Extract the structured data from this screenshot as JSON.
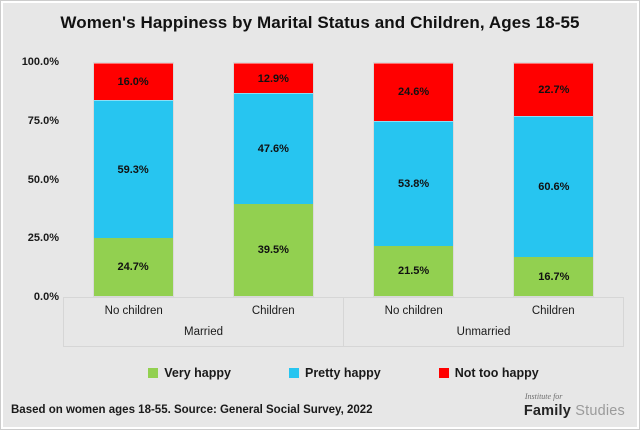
{
  "title": "Women's Happiness by Marital Status and Children, Ages 18-55",
  "chart_data": {
    "type": "bar",
    "stacked": true,
    "title": "Women's Happiness by Marital Status and Children, Ages 18-55",
    "xlabel": "",
    "ylabel": "",
    "ylim": [
      0,
      100
    ],
    "unit": "percent",
    "grid": false,
    "legend_position": "bottom",
    "y_ticks": [
      "100.0%",
      "75.0%",
      "50.0%",
      "25.0%",
      "0.0%"
    ],
    "groups": [
      {
        "label": "Married",
        "categories": [
          "No children",
          "Children"
        ]
      },
      {
        "label": "Unmarried",
        "categories": [
          "No children",
          "Children"
        ]
      }
    ],
    "series": [
      {
        "name": "Very happy",
        "color": "#92D050",
        "values": [
          24.7,
          39.5,
          21.5,
          16.7
        ]
      },
      {
        "name": "Pretty happy",
        "color": "#27C5F0",
        "values": [
          59.3,
          47.6,
          53.8,
          60.6
        ]
      },
      {
        "name": "Not too happy",
        "color": "#FF0000",
        "values": [
          16.0,
          12.9,
          24.6,
          22.7
        ]
      }
    ],
    "data_labels": [
      [
        "24.7%",
        "39.5%",
        "21.5%",
        "16.7%"
      ],
      [
        "59.3%",
        "47.6%",
        "53.8%",
        "60.6%"
      ],
      [
        "16.0%",
        "12.9%",
        "24.6%",
        "22.7%"
      ]
    ]
  },
  "footer": {
    "source_note": "Based on women ages 18-55. Source: General Social Survey, 2022"
  },
  "logo": {
    "tagline": "Institute for",
    "brand_primary": "Family",
    "brand_secondary": "Studies"
  },
  "colors": {
    "background": "#E7E7E7",
    "frame": "#FFFFFF",
    "axis_line": "#D6D6D6",
    "text": "#1A1A1A"
  }
}
